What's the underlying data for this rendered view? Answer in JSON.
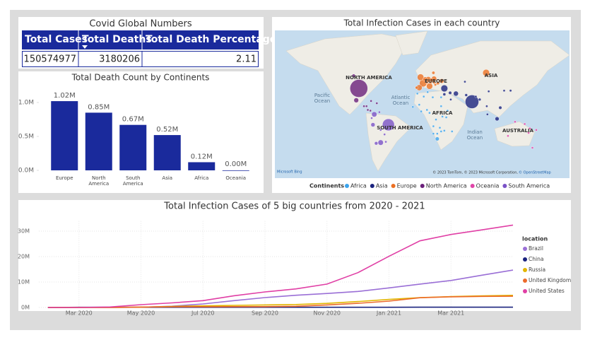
{
  "table": {
    "title": "Covid Global Numbers",
    "columns": [
      "Total Cases",
      "Total Deaths",
      "Total Death Percentage"
    ],
    "rows": [
      [
        150574977,
        3180206,
        2.11
      ]
    ]
  },
  "chart_data": [
    {
      "type": "bar",
      "title": "Total Death Count by Continents",
      "categories": [
        "Europe",
        "North America",
        "South America",
        "Asia",
        "Africa",
        "Oceania"
      ],
      "values": [
        1020000,
        850000,
        670000,
        520000,
        120000,
        1000
      ],
      "value_labels": [
        "1.02M",
        "0.85M",
        "0.67M",
        "0.52M",
        "0.12M",
        "0.00M"
      ],
      "color": "#1a2a9c",
      "ylim": [
        0,
        1100000
      ],
      "yticks": [
        {
          "value": 0,
          "label": "0.0M"
        },
        {
          "value": 500000,
          "label": "0.5M"
        },
        {
          "value": 1000000,
          "label": "1.0M"
        }
      ],
      "grid": false
    },
    {
      "type": "map",
      "title": "Total Infection Cases in each country",
      "legend_title": "Continents",
      "region_labels": [
        "NORTH AMERICA",
        "EUROPE",
        "ASIA",
        "AFRICA",
        "SOUTH AMERICA",
        "AUSTRALIA"
      ],
      "ocean_labels": [
        "Pacific Ocean",
        "Atlantic Ocean",
        "Indian Ocean"
      ],
      "logo": "Microsoft Bing",
      "attribution": "© 2023 TomTom, © 2023 Microsoft Corporation,",
      "attribution_link": "© OpenStreetMap",
      "series": [
        {
          "name": "Africa",
          "color": "#3ba3ec",
          "x": [
            24,
            30,
            -7,
            40,
            8,
            38,
            3,
            9,
            17,
            -1,
            28,
            12,
            18,
            35,
            30,
            -14,
            47,
            18,
            24,
            22,
            -4,
            32,
            30
          ],
          "y": [
            -29,
            27,
            32,
            9,
            10,
            0,
            28,
            34,
            27,
            8,
            -14,
            6,
            -12,
            -18,
            15,
            14,
            -19,
            -22,
            -22,
            -3,
            17,
            1,
            -19
          ],
          "size": [
            1.58,
            0.22,
            0.51,
            0.25,
            0.16,
            0.16,
            0.12,
            0.3,
            0.18,
            0.09,
            0.09,
            0.06,
            0.03,
            0.07,
            0.03,
            0.04,
            0.04,
            0.05,
            0.05,
            0.03,
            0.01,
            0.04,
            0.04
          ]
        },
        {
          "name": "Asia",
          "color": "#1a237e",
          "x": [
            78,
            53,
            117,
            44,
            122,
            138,
            90,
            69,
            45,
            35,
            67,
            102,
            104,
            128,
            101,
            84,
            35
          ],
          "y": [
            21,
            32,
            -2,
            33,
            13,
            36,
            24,
            30,
            24,
            31,
            48,
            4,
            35,
            36,
            15,
            28,
            39
          ],
          "size": [
            18.8,
            2.5,
            1.67,
            1.05,
            1.06,
            0.59,
            0.76,
            0.82,
            0.42,
            0.84,
            0.36,
            0.41,
            0.1,
            0.12,
            0.06,
            0.32,
            4.8
          ]
        },
        {
          "name": "Europe",
          "color": "#ec7023",
          "x": [
            2,
            100,
            -2,
            12,
            -4,
            10,
            19,
            31,
            5,
            15,
            25,
            4,
            18,
            -8,
            19,
            21,
            8,
            14
          ],
          "y": [
            46,
            60,
            54,
            42,
            40,
            51,
            52,
            49,
            52,
            50,
            46,
            51,
            60,
            40,
            47,
            44,
            47,
            47
          ],
          "size": [
            5.6,
            4.8,
            4.4,
            4.0,
            3.5,
            3.4,
            2.8,
            2.1,
            1.5,
            1.6,
            1.07,
            0.98,
            0.98,
            0.84,
            0.78,
            0.68,
            0.66,
            0.62
          ]
        },
        {
          "name": "North America",
          "color": "#6a1f7a",
          "x": [
            -98,
            -102,
            -106,
            -90,
            -80,
            -84,
            -79,
            -70,
            -86
          ],
          "y": [
            39,
            23,
            56,
            15,
            9,
            10,
            22,
            19,
            15
          ],
          "size": [
            32.4,
            2.35,
            1.23,
            0.23,
            0.36,
            0.26,
            0.11,
            0.26,
            0.21
          ]
        },
        {
          "name": "Oceania",
          "color": "#e045a8",
          "x": [
            134,
            172,
            145,
            178,
            166,
            160,
            168
          ],
          "y": [
            -25,
            -41,
            -6,
            -17,
            -21,
            -9,
            -15
          ],
          "size": [
            0.03,
            0.003,
            0.01,
            0.0001,
            0.0001,
            0.0001,
            0.0001
          ]
        },
        {
          "name": "South America",
          "color": "#7a52c7",
          "x": [
            -52,
            -64,
            -74,
            -76,
            -71,
            -78,
            -64,
            -66,
            -58,
            -56
          ],
          "y": [
            -10,
            -34,
            4,
            -10,
            -35,
            -1,
            -17,
            7,
            -23,
            -33
          ],
          "size": [
            14.7,
            2.95,
            2.86,
            1.79,
            1.2,
            0.38,
            0.3,
            0.2,
            0.3,
            0.19
          ]
        }
      ]
    },
    {
      "type": "line",
      "title": "Total Infection Cases of 5 big countries from 2020 - 2021",
      "legend_title": "location",
      "x": [
        "2020-02",
        "2020-03",
        "2020-04",
        "2020-05",
        "2020-06",
        "2020-07",
        "2020-08",
        "2020-09",
        "2020-10",
        "2020-11",
        "2020-12",
        "2021-01",
        "2021-02",
        "2021-03",
        "2021-04",
        "2021-05"
      ],
      "xlim": [
        "2020-01",
        "2021-05"
      ],
      "xticks": [
        {
          "value": "2020-03",
          "label": "Mar 2020"
        },
        {
          "value": "2020-05",
          "label": "May 2020"
        },
        {
          "value": "2020-07",
          "label": "Jul 2020"
        },
        {
          "value": "2020-09",
          "label": "Sep 2020"
        },
        {
          "value": "2020-11",
          "label": "Nov 2020"
        },
        {
          "value": "2021-01",
          "label": "Jan 2021"
        },
        {
          "value": "2021-03",
          "label": "Mar 2021"
        }
      ],
      "ylim": [
        0,
        34000000
      ],
      "yticks": [
        {
          "value": 0,
          "label": "0M"
        },
        {
          "value": 10000000,
          "label": "10M"
        },
        {
          "value": 20000000,
          "label": "20M"
        },
        {
          "value": 30000000,
          "label": "30M"
        }
      ],
      "grid": true,
      "series": [
        {
          "name": "Brazil",
          "color": "#9a6fd6",
          "values": [
            0,
            0,
            6000,
            90000,
            500000,
            1400000,
            2700000,
            3900000,
            4800000,
            5500000,
            6300000,
            7700000,
            9200000,
            10600000,
            12700000,
            14700000
          ]
        },
        {
          "name": "China",
          "color": "#1a237e",
          "values": [
            12000,
            80000,
            82000,
            84000,
            84000,
            85000,
            87000,
            90000,
            91000,
            92000,
            93000,
            96000,
            100000,
            101000,
            102000,
            103000
          ]
        },
        {
          "name": "Russia",
          "color": "#e2b500",
          "values": [
            0,
            0,
            2000,
            110000,
            410000,
            650000,
            840000,
            1000000,
            1180000,
            1620000,
            2320000,
            3160000,
            3850000,
            4290000,
            4560000,
            4790000
          ]
        },
        {
          "name": "United Kingdom",
          "color": "#ec6a2a",
          "values": [
            0,
            40,
            30000,
            170000,
            280000,
            300000,
            320000,
            340000,
            470000,
            1000000,
            1630000,
            2490000,
            3820000,
            4190000,
            4350000,
            4410000
          ]
        },
        {
          "name": "United States",
          "color": "#e03fa5",
          "values": [
            8,
            30,
            200000,
            1100000,
            1800000,
            2700000,
            4600000,
            6100000,
            7300000,
            9200000,
            13700000,
            20100000,
            26200000,
            28700000,
            30500000,
            32400000
          ]
        }
      ]
    }
  ]
}
